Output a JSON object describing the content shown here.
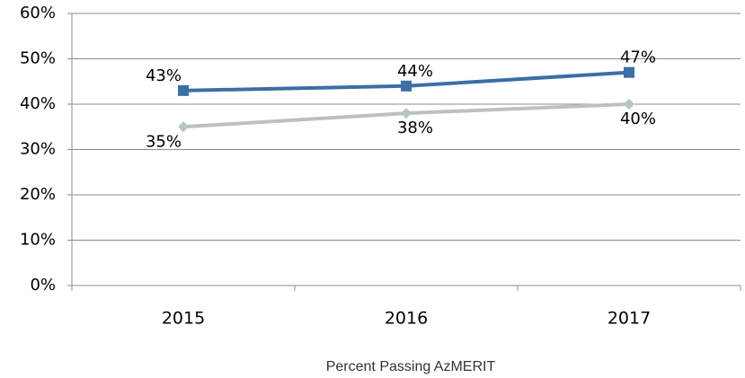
{
  "chart_data": {
    "type": "line",
    "x_label": "Percent Passing AzMERIT",
    "categories": [
      "2015",
      "2016",
      "2017"
    ],
    "series": [
      {
        "color": "#3a6fa6",
        "marker": "square",
        "values": [
          43,
          44,
          47
        ],
        "value_labels": [
          "43%",
          "44%",
          "47%"
        ]
      },
      {
        "color": "#bfbfbf",
        "marker": "diamond",
        "values": [
          35,
          38,
          40
        ],
        "value_labels": [
          "35%",
          "38%",
          "40%"
        ]
      }
    ],
    "ylim": [
      0,
      60
    ],
    "yticks": [
      {
        "value": 0,
        "label": "0%"
      },
      {
        "value": 10,
        "label": "10%"
      },
      {
        "value": 20,
        "label": "20%"
      },
      {
        "value": 30,
        "label": "30%"
      },
      {
        "value": 40,
        "label": "40%"
      },
      {
        "value": 50,
        "label": "50%"
      },
      {
        "value": 60,
        "label": "60%"
      }
    ],
    "grid": true
  }
}
